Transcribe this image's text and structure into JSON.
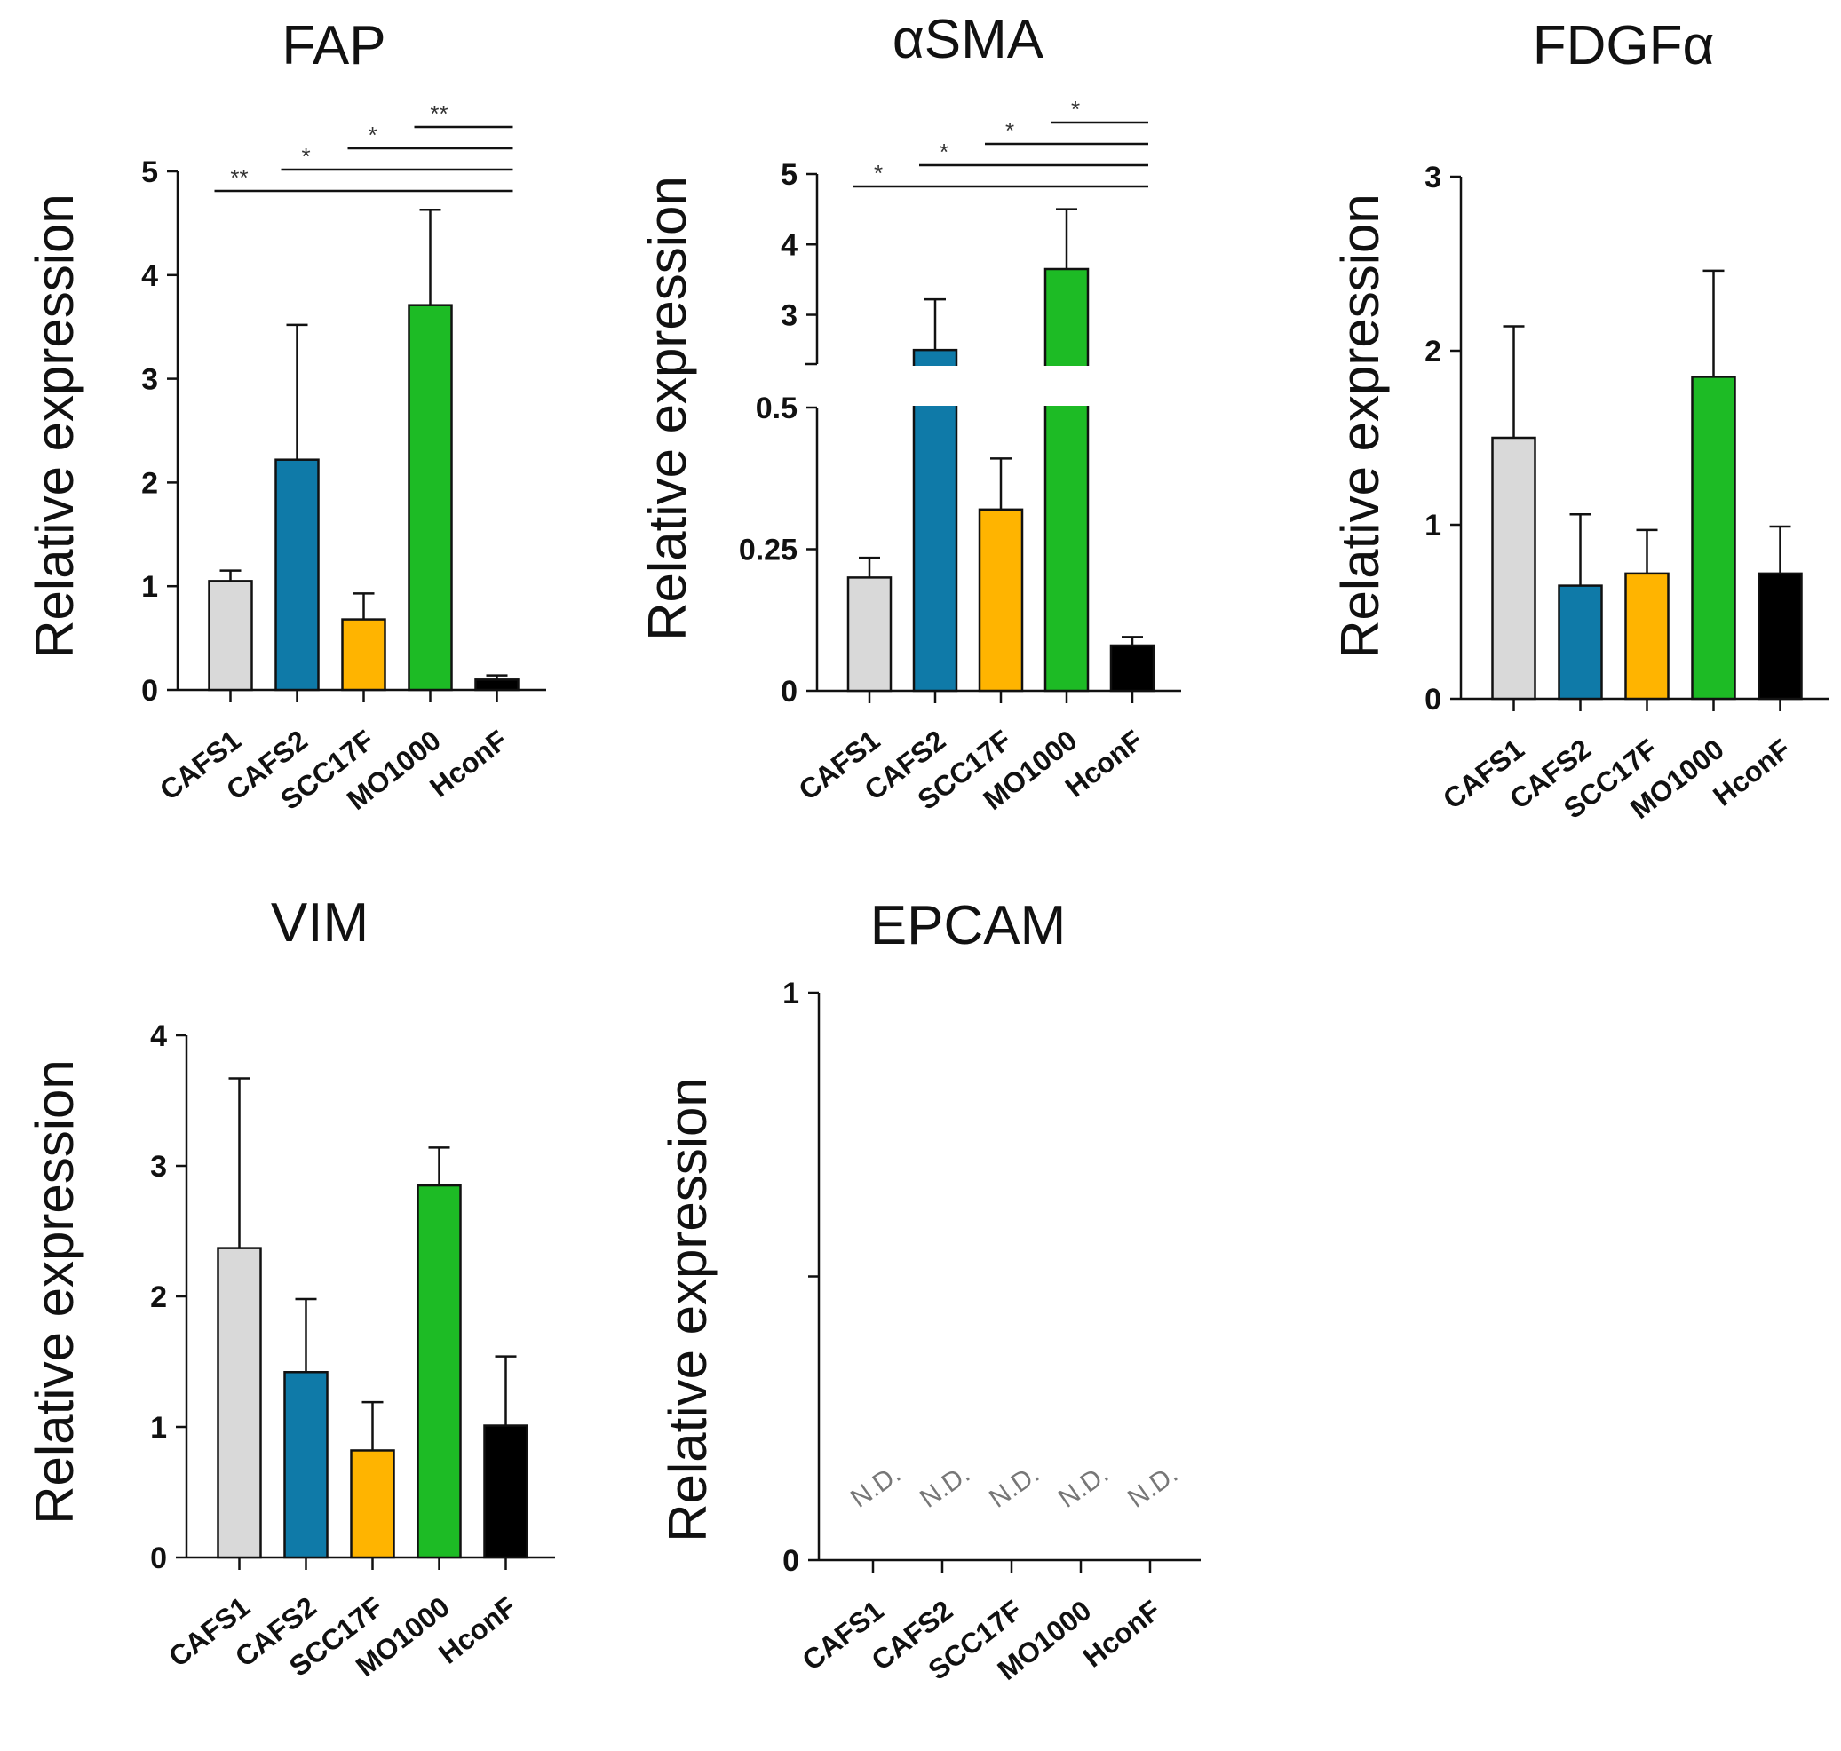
{
  "chart_data": [
    {
      "type": "bar",
      "title": "FAP",
      "ylabel": "Relative expression",
      "ylim": [
        0,
        5
      ],
      "yticks": [
        0,
        1,
        2,
        3,
        4,
        5
      ],
      "categories": [
        "CAFS1",
        "CAFS2",
        "SCC17F",
        "MO1000",
        "HconF"
      ],
      "values": [
        1.05,
        2.22,
        0.68,
        3.71,
        0.1
      ],
      "errors": [
        0.1,
        1.3,
        0.25,
        0.92,
        0.04
      ],
      "significance": [
        {
          "from": "CAFS1",
          "to": "HconF",
          "label": "**"
        },
        {
          "from": "CAFS2",
          "to": "HconF",
          "label": "*"
        },
        {
          "from": "SCC17F",
          "to": "HconF",
          "label": "*"
        },
        {
          "from": "MO1000",
          "to": "HconF",
          "label": "**"
        }
      ]
    },
    {
      "type": "bar",
      "title": "αSMA",
      "ylabel": "Relative expression",
      "broken_axis": true,
      "ylim_lower": [
        0,
        0.5
      ],
      "yticks_lower": [
        0,
        0.25,
        0.5
      ],
      "ytick_labels_lower": [
        "0",
        "0.25",
        "0.5"
      ],
      "ylim_upper": [
        2.3,
        5
      ],
      "yticks_upper": [
        3,
        4,
        5
      ],
      "categories": [
        "CAFS1",
        "CAFS2",
        "SCC17F",
        "MO1000",
        "HconF"
      ],
      "values": [
        0.2,
        2.5,
        0.32,
        3.65,
        0.08
      ],
      "errors": [
        0.035,
        0.72,
        0.09,
        0.85,
        0.015
      ],
      "significance": [
        {
          "from": "CAFS1",
          "to": "HconF",
          "label": "*"
        },
        {
          "from": "CAFS2",
          "to": "HconF",
          "label": "*"
        },
        {
          "from": "SCC17F",
          "to": "HconF",
          "label": "*"
        },
        {
          "from": "MO1000",
          "to": "HconF",
          "label": "*"
        }
      ]
    },
    {
      "type": "bar",
      "title": "FDGFα",
      "ylabel": "Relative expression",
      "ylim": [
        0,
        3
      ],
      "yticks": [
        0,
        1,
        2,
        3
      ],
      "categories": [
        "CAFS1",
        "CAFS2",
        "SCC17F",
        "MO1000",
        "HconF"
      ],
      "values": [
        1.5,
        0.65,
        0.72,
        1.85,
        0.72
      ],
      "errors": [
        0.64,
        0.41,
        0.25,
        0.61,
        0.27
      ]
    },
    {
      "type": "bar",
      "title": "VIM",
      "ylabel": "Relative expression",
      "ylim": [
        0,
        4
      ],
      "yticks": [
        0,
        1,
        2,
        3,
        4
      ],
      "categories": [
        "CAFS1",
        "CAFS2",
        "SCC17F",
        "MO1000",
        "HconF"
      ],
      "values": [
        2.37,
        1.42,
        0.82,
        2.85,
        1.01
      ],
      "errors": [
        1.3,
        0.56,
        0.37,
        0.29,
        0.53
      ]
    },
    {
      "type": "bar",
      "title": "EPCAM",
      "ylabel": "Relative expression",
      "ylim": [
        0,
        1
      ],
      "yticks": [
        0,
        0.5,
        1
      ],
      "ytick_labels": [
        "0",
        "",
        "1"
      ],
      "categories": [
        "CAFS1",
        "CAFS2",
        "SCC17F",
        "MO1000",
        "HconF"
      ],
      "values": [
        0,
        0,
        0,
        0,
        0
      ],
      "annotations": [
        "N.D.",
        "N.D.",
        "N.D.",
        "N.D.",
        "N.D."
      ]
    }
  ],
  "colors": {
    "CAFS1": "#d9d9d9",
    "CAFS2": "#0f7aa8",
    "SCC17F": "#ffb400",
    "MO1000": "#1dbb25",
    "HconF": "#000000"
  }
}
